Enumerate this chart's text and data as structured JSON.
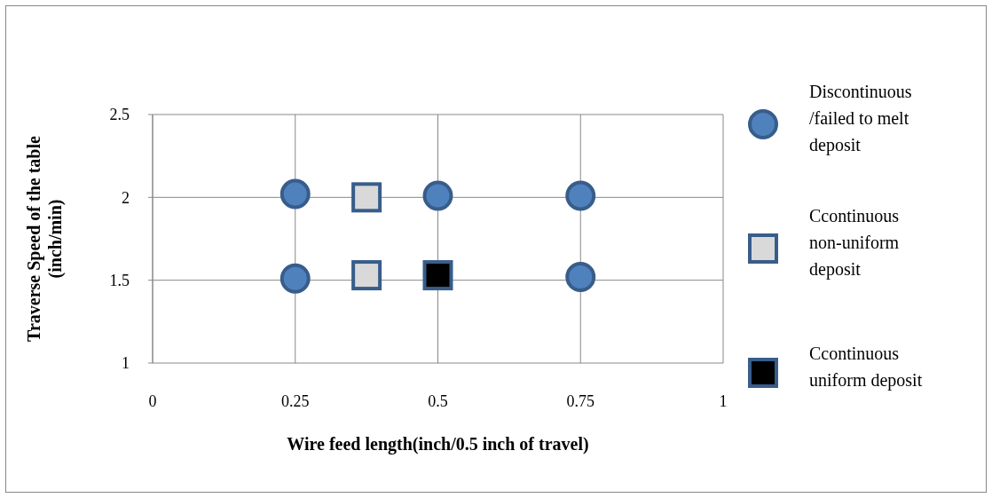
{
  "chart_data": {
    "type": "scatter",
    "xlabel": "Wire feed length(inch/0.5 inch of travel)",
    "ylabel": "Traverse Speed of the table (inch/min)",
    "xlim": [
      0,
      1
    ],
    "xticks": [
      0,
      0.25,
      0.5,
      0.75,
      1
    ],
    "ylim": [
      1,
      2.5
    ],
    "yticks": [
      1,
      1.5,
      2,
      2.5
    ],
    "grid": true,
    "legend": "right",
    "series": [
      {
        "name": "Discontinuous /failed to melt deposit",
        "color": "#4f81bd",
        "marker": "circle",
        "x": [
          0.25,
          0.5,
          0.75,
          0.25,
          0.75
        ],
        "values": [
          2.02,
          2.01,
          2.01,
          1.51,
          1.52
        ]
      },
      {
        "name": "Ccontinuous non-uniform deposit",
        "color": "#d9d9d9",
        "marker": "square",
        "x": [
          0.375,
          0.375
        ],
        "values": [
          2.0,
          1.53
        ]
      },
      {
        "name": "Ccontinuous uniform deposit",
        "color": "#000000",
        "marker": "square",
        "x": [
          0.5
        ],
        "values": [
          1.53
        ]
      }
    ]
  }
}
